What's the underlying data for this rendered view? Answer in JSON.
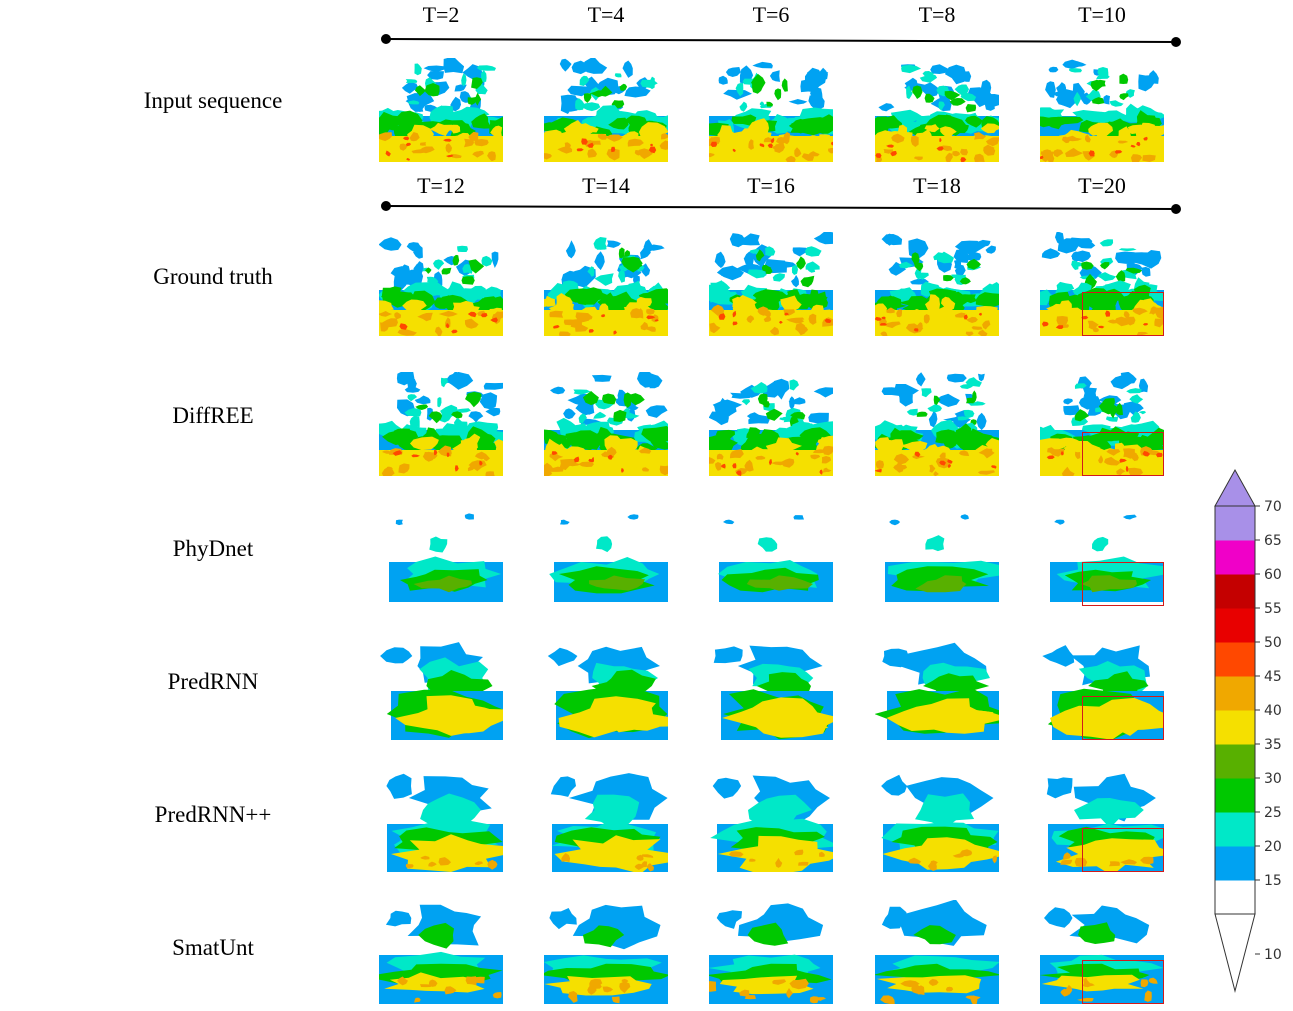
{
  "time_labels_input": [
    "T=2",
    "T=4",
    "T=6",
    "T=8",
    "T=10"
  ],
  "time_labels_output": [
    "T=12",
    "T=14",
    "T=16",
    "T=18",
    "T=20"
  ],
  "rows": [
    {
      "label": "Input sequence",
      "style": "real"
    },
    {
      "label": "Ground truth",
      "style": "real"
    },
    {
      "label": "DiffREE",
      "style": "real"
    },
    {
      "label": "PhyDnet",
      "style": "phydnet"
    },
    {
      "label": "PredRNN",
      "style": "predrnn"
    },
    {
      "label": "PredRNN++",
      "style": "predrnnpp"
    },
    {
      "label": "SmatUnt",
      "style": "smatunt"
    }
  ],
  "colorbar": {
    "levels": [
      10,
      15,
      20,
      25,
      30,
      35,
      40,
      45,
      50,
      55,
      60,
      65,
      70
    ],
    "tick_labels": [
      "10",
      "15",
      "20",
      "25",
      "30",
      "35",
      "40",
      "45",
      "50",
      "55",
      "60",
      "65",
      "70"
    ],
    "colors": [
      "#ffffff",
      "#00a2f2",
      "#00e8c8",
      "#00c800",
      "#58b000",
      "#f5e000",
      "#f0a800",
      "#ff4800",
      "#e80000",
      "#c40000",
      "#f000c8",
      "#a890e8"
    ]
  },
  "highlight_color": "#d21a1a"
}
